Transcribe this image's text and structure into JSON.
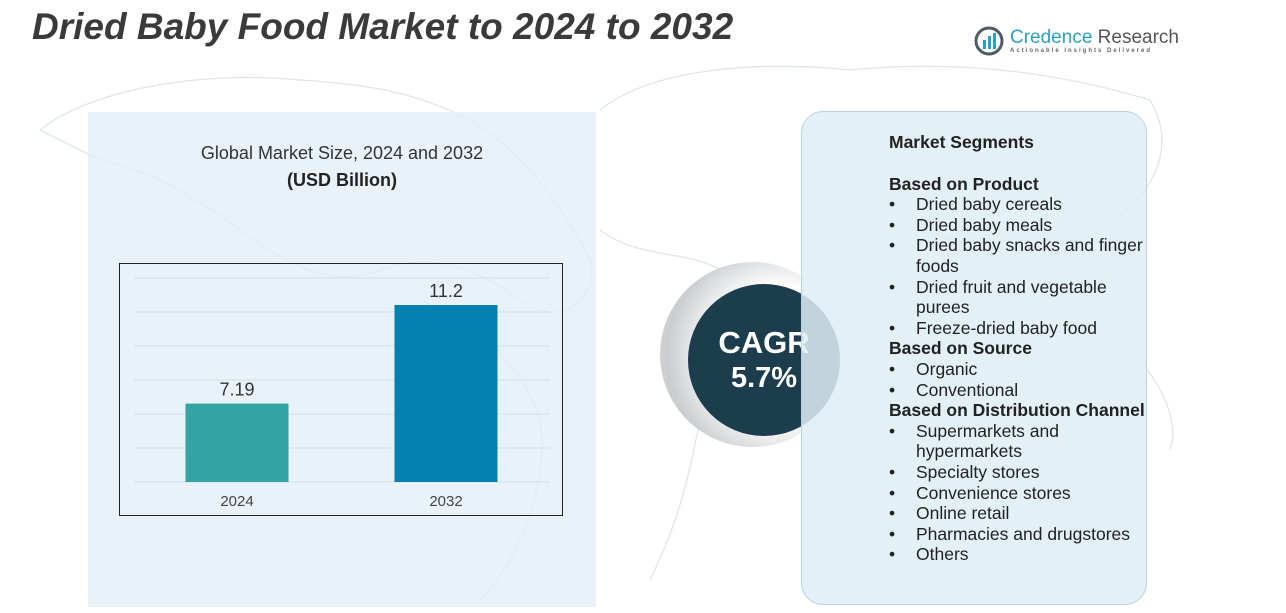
{
  "title": "Dried Baby Food Market to 2024 to 2032",
  "logo": {
    "name_part1": "Credence",
    "name_part2": " Research",
    "tagline": "Actionable Insights Delivered"
  },
  "cagr": {
    "label": "CAGR",
    "value": "5.7%"
  },
  "segments": {
    "heading": "Market Segments",
    "groups": [
      {
        "title": "Based on Product",
        "items": [
          "Dried baby cereals",
          "Dried baby meals",
          "Dried baby snacks and finger foods",
          "Dried fruit and vegetable purees",
          "Freeze-dried baby food"
        ]
      },
      {
        "title": "Based on Source",
        "items": [
          "Organic",
          "Conventional"
        ]
      },
      {
        "title": "Based on Distribution Channel",
        "items": [
          "Supermarkets and hypermarkets",
          "Specialty stores",
          "Convenience stores",
          "Online retail",
          "Pharmacies and drugstores",
          "Others"
        ]
      }
    ]
  },
  "chart_data": {
    "type": "bar",
    "title": "Global Market Size,  2024 and 2032",
    "unit": "(USD Billion)",
    "categories": [
      "2024",
      "2032"
    ],
    "values": [
      7.19,
      11.2
    ],
    "value_labels": [
      "7.19",
      "11.2"
    ],
    "colors": [
      "#33a3a3",
      "#0580b0"
    ],
    "ylim": [
      4,
      12.3
    ],
    "grid": true,
    "legend": "none"
  }
}
